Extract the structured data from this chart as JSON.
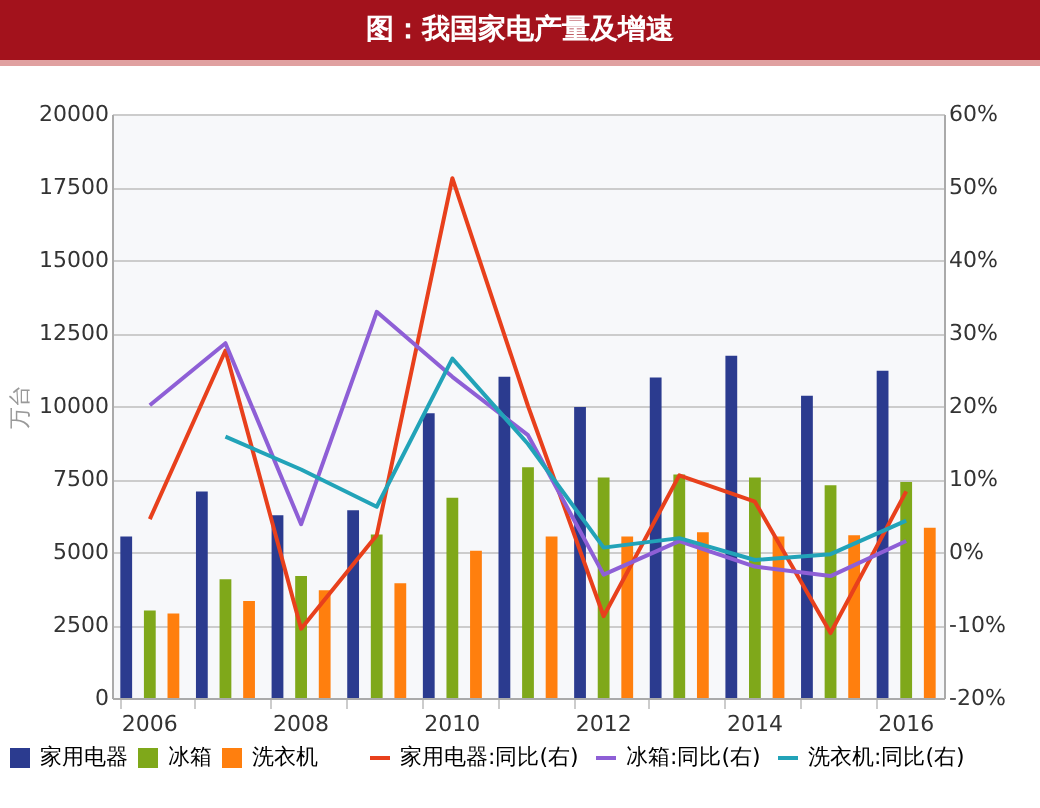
{
  "chart_data": {
    "type": "bar",
    "title": "图：我国家电产量及增速",
    "ylabel": "万台",
    "categories": [
      "2006",
      null,
      "2008",
      null,
      "2010",
      null,
      "2012",
      null,
      "2014",
      null,
      "2016"
    ],
    "series": [
      {
        "name": "家用电器",
        "type": "bar",
        "color": "#2b3b8f",
        "values": [
          5530,
          7070,
          6260,
          6430,
          9750,
          11000,
          9970,
          10980,
          11720,
          10350,
          11210
        ]
      },
      {
        "name": "冰箱",
        "type": "bar",
        "color": "#7fa81a",
        "values": [
          3000,
          4070,
          4180,
          5600,
          6860,
          7900,
          7550,
          7650,
          7550,
          7290,
          7400
        ]
      },
      {
        "name": "洗衣机",
        "type": "bar",
        "color": "#ff7f0e",
        "values": [
          2890,
          3320,
          3690,
          3930,
          5040,
          5530,
          5530,
          5680,
          5530,
          5570,
          5830
        ]
      },
      {
        "name": "家用电器:同比(右)",
        "type": "line",
        "axis": "y2",
        "color": "#e8401c",
        "values": [
          4.5,
          27.6,
          -10.5,
          2.3,
          51.2,
          20,
          -8.8,
          10.5,
          6.9,
          -11.1,
          8.3
        ]
      },
      {
        "name": "冰箱:同比(右)",
        "type": "line",
        "axis": "y2",
        "color": "#8e5fd6",
        "values": [
          20.1,
          28.6,
          3.8,
          32.9,
          24,
          16,
          -3.1,
          1.5,
          -2,
          -3.3,
          1.5
        ]
      },
      {
        "name": "洗衣机:同比(右)",
        "type": "line",
        "axis": "y2",
        "color": "#22a3b8",
        "values": [
          null,
          15.8,
          11.3,
          6.2,
          26.5,
          14.8,
          0.6,
          1.9,
          -1.1,
          -0.3,
          4.3
        ]
      }
    ],
    "ylim": [
      0,
      20000
    ],
    "yticks": [
      0,
      2500,
      5000,
      7500,
      10000,
      12500,
      15000,
      17500,
      20000
    ],
    "y2lim": [
      -20,
      60
    ],
    "y2ticks": [
      {
        "value": -20,
        "label": "-20%"
      },
      {
        "value": -10,
        "label": "-10%"
      },
      {
        "value": 0,
        "label": "0%"
      },
      {
        "value": 10,
        "label": "10%"
      },
      {
        "value": 20,
        "label": "20%"
      },
      {
        "value": 30,
        "label": "30%"
      },
      {
        "value": 40,
        "label": "40%"
      },
      {
        "value": 50,
        "label": "50%"
      },
      {
        "value": 60,
        "label": "60%"
      }
    ],
    "grid": "y",
    "legend": "bottom"
  }
}
